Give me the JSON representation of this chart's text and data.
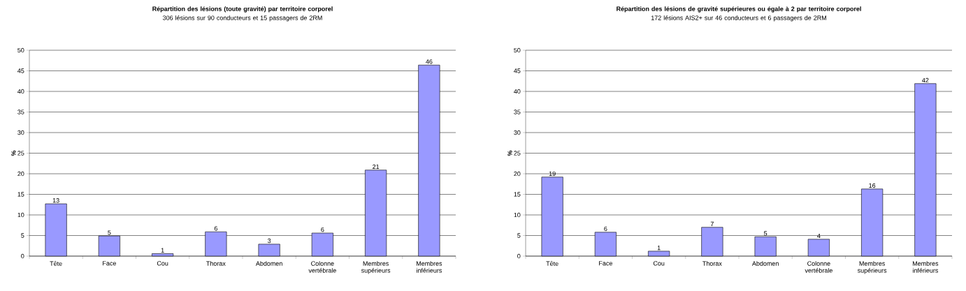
{
  "chart_data": [
    {
      "type": "bar",
      "title": "Répartition des lésions (toute gravité) par territoire corporel",
      "subtitle": "306 lésions sur 90 conducteurs et 15 passagers de 2RM",
      "ylabel": "%",
      "categories": [
        "Tête",
        "Face",
        "Cou",
        "Thorax",
        "Abdomen",
        "Colonne vertébrale",
        "Membres supérieurs",
        "Membres inférieurs"
      ],
      "values": [
        12.7,
        4.9,
        0.6,
        5.9,
        2.9,
        5.6,
        20.9,
        46.4
      ],
      "value_labels": [
        "13",
        "5",
        "1",
        "6",
        "3",
        "6",
        "21",
        "46"
      ],
      "color": "#9999ff",
      "ylim": [
        0,
        50
      ],
      "yticks": [
        0,
        5,
        10,
        15,
        20,
        25,
        30,
        35,
        40,
        45,
        50
      ],
      "grid": "y"
    },
    {
      "type": "bar",
      "title": "Répartition des lésions de gravité supérieures ou égale à 2 par territoire corporel",
      "subtitle": "172 lésions AIS2+ sur 46 conducteurs et 6 passagers de 2RM",
      "ylabel": "%",
      "categories": [
        "Tête",
        "Face",
        "Cou",
        "Thorax",
        "Abdomen",
        "Colonne vertébrale",
        "Membres supérieurs",
        "Membres inférieurs"
      ],
      "values": [
        19.2,
        5.8,
        1.2,
        7.0,
        4.7,
        4.1,
        16.3,
        41.9
      ],
      "value_labels": [
        "19",
        "6",
        "1",
        "7",
        "5",
        "4",
        "16",
        "42"
      ],
      "color": "#9999ff",
      "ylim": [
        0,
        50
      ],
      "yticks": [
        0,
        5,
        10,
        15,
        20,
        25,
        30,
        35,
        40,
        45,
        50
      ],
      "grid": "y"
    }
  ]
}
